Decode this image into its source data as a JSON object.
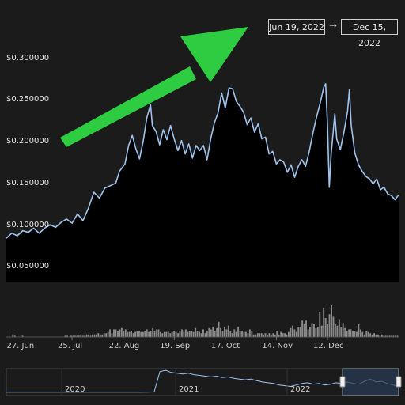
{
  "range_selector": {
    "from": "Jun 19, 2022",
    "arrow": "→",
    "to": "Dec 15, 2022"
  },
  "colors": {
    "background": "#1b1b1b",
    "line": "#9ec4ee",
    "area": "#000000",
    "volume": "#8a8a8a",
    "annotation_arrow": "#2ecc40",
    "navigator_mask": "#2a3a55"
  },
  "chart_data": {
    "type": "area",
    "x_range": [
      "2022-06-19",
      "2022-12-15"
    ],
    "ylim": [
      0.04,
      0.33
    ],
    "y_ticks": [
      "$0.050000",
      "$0.100000",
      "$0.150000",
      "$0.200000",
      "$0.250000",
      "$0.300000"
    ],
    "x_ticks": [
      "27. Jun",
      "25. Jul",
      "22. Aug",
      "19. Sep",
      "17. Oct",
      "14. Nov",
      "12. Dec"
    ],
    "series": [
      {
        "values": [
          [
            0,
            0.092
          ],
          [
            3,
            0.098
          ],
          [
            6,
            0.095
          ],
          [
            9,
            0.101
          ],
          [
            12,
            0.099
          ],
          [
            15,
            0.104
          ],
          [
            18,
            0.098
          ],
          [
            21,
            0.104
          ],
          [
            24,
            0.108
          ],
          [
            27,
            0.105
          ],
          [
            30,
            0.111
          ],
          [
            33,
            0.115
          ],
          [
            36,
            0.11
          ],
          [
            39,
            0.121
          ],
          [
            42,
            0.113
          ],
          [
            45,
            0.128
          ],
          [
            48,
            0.147
          ],
          [
            51,
            0.14
          ],
          [
            54,
            0.152
          ],
          [
            57,
            0.155
          ],
          [
            60,
            0.158
          ],
          [
            62,
            0.172
          ],
          [
            65,
            0.181
          ],
          [
            67,
            0.203
          ],
          [
            69,
            0.215
          ],
          [
            71,
            0.199
          ],
          [
            73,
            0.187
          ],
          [
            75,
            0.208
          ],
          [
            77,
            0.236
          ],
          [
            79,
            0.252
          ],
          [
            80,
            0.227
          ],
          [
            82,
            0.22
          ],
          [
            84,
            0.204
          ],
          [
            86,
            0.222
          ],
          [
            88,
            0.21
          ],
          [
            90,
            0.227
          ],
          [
            92,
            0.211
          ],
          [
            94,
            0.197
          ],
          [
            96,
            0.209
          ],
          [
            98,
            0.193
          ],
          [
            100,
            0.205
          ],
          [
            102,
            0.188
          ],
          [
            104,
            0.203
          ],
          [
            106,
            0.197
          ],
          [
            108,
            0.203
          ],
          [
            110,
            0.186
          ],
          [
            112,
            0.211
          ],
          [
            114,
            0.23
          ],
          [
            116,
            0.242
          ],
          [
            118,
            0.266
          ],
          [
            120,
            0.248
          ],
          [
            122,
            0.272
          ],
          [
            124,
            0.271
          ],
          [
            126,
            0.256
          ],
          [
            128,
            0.25
          ],
          [
            130,
            0.243
          ],
          [
            132,
            0.228
          ],
          [
            134,
            0.236
          ],
          [
            136,
            0.219
          ],
          [
            138,
            0.229
          ],
          [
            140,
            0.211
          ],
          [
            142,
            0.213
          ],
          [
            144,
            0.193
          ],
          [
            146,
            0.196
          ],
          [
            148,
            0.181
          ],
          [
            150,
            0.186
          ],
          [
            152,
            0.183
          ],
          [
            154,
            0.171
          ],
          [
            156,
            0.18
          ],
          [
            158,
            0.165
          ],
          [
            160,
            0.178
          ],
          [
            162,
            0.186
          ],
          [
            164,
            0.178
          ],
          [
            166,
            0.196
          ],
          [
            168,
            0.218
          ],
          [
            170,
            0.237
          ],
          [
            172,
            0.254
          ],
          [
            174,
            0.273
          ],
          [
            175,
            0.277
          ],
          [
            176,
            0.228
          ],
          [
            177,
            0.153
          ],
          [
            178,
            0.192
          ],
          [
            180,
            0.241
          ],
          [
            181,
            0.211
          ],
          [
            183,
            0.198
          ],
          [
            185,
            0.219
          ],
          [
            187,
            0.244
          ],
          [
            188,
            0.27
          ],
          [
            189,
            0.227
          ],
          [
            191,
            0.194
          ],
          [
            193,
            0.18
          ],
          [
            195,
            0.172
          ],
          [
            197,
            0.166
          ],
          [
            199,
            0.163
          ],
          [
            201,
            0.157
          ],
          [
            203,
            0.163
          ],
          [
            205,
            0.15
          ],
          [
            207,
            0.153
          ],
          [
            209,
            0.145
          ],
          [
            211,
            0.143
          ],
          [
            213,
            0.138
          ],
          [
            215,
            0.144
          ]
        ]
      }
    ],
    "volume": [
      0,
      0,
      0,
      2,
      1,
      0,
      0,
      0,
      1,
      0,
      0,
      0,
      0,
      0,
      0,
      0,
      0,
      0,
      0,
      0,
      0,
      0,
      0,
      0,
      0,
      0,
      0,
      0,
      0,
      0,
      1,
      1,
      0,
      1,
      1,
      1,
      1,
      1,
      2,
      1,
      1,
      2,
      2,
      1,
      2,
      2,
      2,
      3,
      2,
      2,
      3,
      3,
      4,
      6,
      3,
      6,
      6,
      5,
      6,
      7,
      5,
      6,
      4,
      4,
      5,
      3,
      4,
      5,
      5,
      4,
      4,
      5,
      6,
      4,
      5,
      7,
      5,
      6,
      6,
      4,
      3,
      4,
      4,
      4,
      3,
      4,
      5,
      4,
      3,
      5,
      6,
      4,
      6,
      4,
      5,
      5,
      4,
      7,
      5,
      4,
      3,
      6,
      3,
      5,
      7,
      6,
      8,
      5,
      7,
      12,
      7,
      5,
      8,
      6,
      9,
      5,
      3,
      6,
      4,
      8,
      5,
      5,
      4,
      4,
      3,
      6,
      5,
      2,
      2,
      3,
      3,
      3,
      2,
      3,
      2,
      3,
      2,
      3,
      2,
      5,
      2,
      4,
      3,
      3,
      2,
      4,
      7,
      9,
      6,
      4,
      8,
      8,
      13,
      10,
      13,
      6,
      8,
      11,
      10,
      7,
      8,
      20,
      9,
      23,
      15,
      10,
      18,
      25,
      16,
      10,
      9,
      14,
      8,
      11,
      7,
      5,
      6,
      6,
      5,
      5,
      4,
      10,
      6,
      4,
      2,
      5,
      4,
      3,
      2,
      3,
      2,
      2,
      1,
      2,
      1,
      1,
      1,
      1,
      1,
      1,
      1,
      1
    ],
    "navigator": {
      "labels": [
        "2020",
        "2021",
        "2022"
      ],
      "values": [
        0.002,
        0.002,
        0.002,
        0.002,
        0.002,
        0.002,
        0.002,
        0.002,
        0.002,
        0.002,
        0.002,
        0.002,
        0.002,
        0.002,
        0.002,
        0.002,
        0.002,
        0.002,
        0.002,
        0.002,
        0.002,
        0.002,
        0.003,
        0.003,
        0.003,
        0.004,
        0.005,
        0.28,
        0.3,
        0.27,
        0.26,
        0.25,
        0.26,
        0.24,
        0.23,
        0.22,
        0.21,
        0.22,
        0.2,
        0.21,
        0.19,
        0.18,
        0.17,
        0.18,
        0.16,
        0.14,
        0.13,
        0.12,
        0.1,
        0.09,
        0.08,
        0.1,
        0.12,
        0.13,
        0.11,
        0.12,
        0.1,
        0.11,
        0.13,
        0.12,
        0.14,
        0.12,
        0.11,
        0.15,
        0.18,
        0.14,
        0.15,
        0.12,
        0.1,
        0.08
      ]
    }
  }
}
